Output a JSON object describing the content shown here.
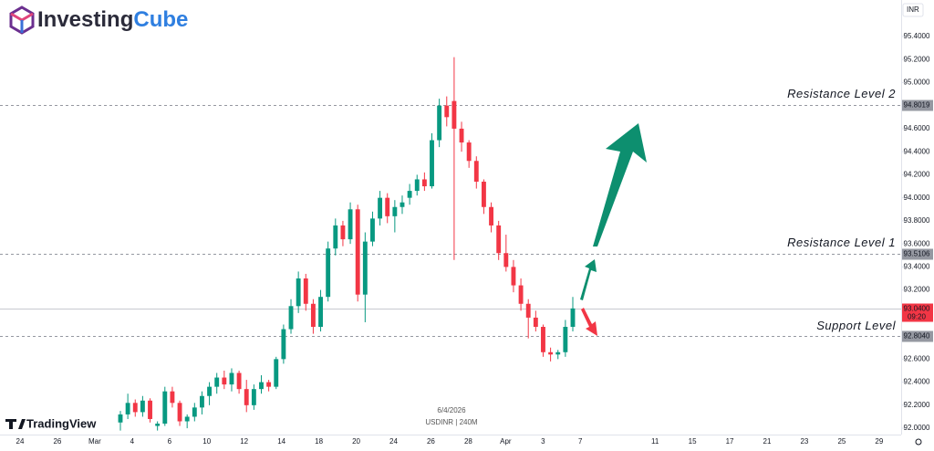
{
  "chart_data": {
    "type": "candlestick",
    "logo": {
      "part1": "Investing",
      "part2": "Cube"
    },
    "watermark": "TradingView",
    "currency": "INR",
    "legend_date": "6/4/2026",
    "legend_symbol": "USDINR | 240M",
    "up_color": "#089981",
    "down_color": "#f23645",
    "ylim": [
      91.9,
      95.7
    ],
    "yticks": [
      {
        "value": 95.4,
        "label": "95.4000"
      },
      {
        "value": 95.2,
        "label": "95.2000"
      },
      {
        "value": 95.0,
        "label": "95.0000"
      },
      {
        "value": 94.8,
        "label": "94.8000"
      },
      {
        "value": 94.6,
        "label": "94.6000"
      },
      {
        "value": 94.4,
        "label": "94.4000"
      },
      {
        "value": 94.2,
        "label": "94.2000"
      },
      {
        "value": 94.0,
        "label": "94.0000"
      },
      {
        "value": 93.8,
        "label": "93.8000"
      },
      {
        "value": 93.6,
        "label": "93.6000"
      },
      {
        "value": 93.4,
        "label": "93.4000"
      },
      {
        "value": 93.2,
        "label": "93.2000"
      },
      {
        "value": 93.0,
        "label": "93.0000"
      },
      {
        "value": 92.8,
        "label": "92.8000"
      },
      {
        "value": 92.6,
        "label": "92.6000"
      },
      {
        "value": 92.4,
        "label": "92.4000"
      },
      {
        "value": 92.2,
        "label": "92.2000"
      },
      {
        "value": 92.0,
        "label": "92.0000"
      }
    ],
    "x_labels": [
      "24",
      "26",
      "Mar",
      "4",
      "6",
      "10",
      "12",
      "14",
      "18",
      "20",
      "24",
      "26",
      "28",
      "Apr",
      "3",
      "7",
      null,
      "11",
      "15",
      "17",
      "21",
      "23",
      "25",
      "29"
    ],
    "candles": {
      "open": [
        92.05,
        92.12,
        92.22,
        92.14,
        92.24,
        92.02,
        92.04,
        92.32,
        92.22,
        92.06,
        92.1,
        92.18,
        92.28,
        92.36,
        92.44,
        92.38,
        92.48,
        92.34,
        92.2,
        92.34,
        92.4,
        92.36,
        92.6,
        92.86,
        93.06,
        93.3,
        93.08,
        92.88,
        93.14,
        93.56,
        93.76,
        93.64,
        93.9,
        93.16,
        93.62,
        93.82,
        94.0,
        93.84,
        93.92,
        94.0,
        94.06,
        94.16,
        94.1,
        94.5,
        94.8,
        94.84,
        94.6,
        94.48,
        94.32,
        94.14,
        93.92,
        93.76,
        93.52,
        93.4,
        93.24,
        93.08,
        92.96,
        92.88,
        92.66,
        92.64,
        92.66,
        92.88
      ],
      "high": [
        92.15,
        92.3,
        92.25,
        92.28,
        92.26,
        92.06,
        92.36,
        92.36,
        92.24,
        92.12,
        92.22,
        92.32,
        92.4,
        92.48,
        92.5,
        92.52,
        92.5,
        92.42,
        92.38,
        92.46,
        92.42,
        92.62,
        92.9,
        93.12,
        93.36,
        93.34,
        93.12,
        93.2,
        93.62,
        93.82,
        93.8,
        93.96,
        93.94,
        93.7,
        93.88,
        94.06,
        94.04,
        93.98,
        94.02,
        94.12,
        94.2,
        94.22,
        94.56,
        94.86,
        94.88,
        95.22,
        94.66,
        94.5,
        94.36,
        94.16,
        93.96,
        93.8,
        93.68,
        93.46,
        93.3,
        93.12,
        93.02,
        92.9,
        92.7,
        92.68,
        92.94,
        93.14
      ],
      "low": [
        91.98,
        92.08,
        92.1,
        92.1,
        92.05,
        91.98,
        92.02,
        92.18,
        92.02,
        92.0,
        92.06,
        92.12,
        92.2,
        92.3,
        92.34,
        92.32,
        92.3,
        92.14,
        92.16,
        92.3,
        92.32,
        92.34,
        92.56,
        92.82,
        93.0,
        93.02,
        92.82,
        92.84,
        93.1,
        93.5,
        93.58,
        93.6,
        93.1,
        92.92,
        93.58,
        93.76,
        93.78,
        93.7,
        93.86,
        93.94,
        94.02,
        94.06,
        94.08,
        94.44,
        94.62,
        93.46,
        94.4,
        94.26,
        94.08,
        93.86,
        93.7,
        93.46,
        93.36,
        93.18,
        93.02,
        92.78,
        92.84,
        92.62,
        92.58,
        92.6,
        92.62,
        92.84
      ],
      "close": [
        92.12,
        92.22,
        92.14,
        92.24,
        92.08,
        92.04,
        92.32,
        92.22,
        92.06,
        92.1,
        92.18,
        92.28,
        92.36,
        92.44,
        92.38,
        92.48,
        92.34,
        92.2,
        92.34,
        92.4,
        92.36,
        92.6,
        92.86,
        93.06,
        93.3,
        93.08,
        92.88,
        93.14,
        93.56,
        93.76,
        93.64,
        93.9,
        93.16,
        93.62,
        93.82,
        94.0,
        93.84,
        93.92,
        93.96,
        94.06,
        94.16,
        94.1,
        94.5,
        94.8,
        94.7,
        94.6,
        94.48,
        94.32,
        94.14,
        93.92,
        93.76,
        93.52,
        93.4,
        93.24,
        93.08,
        92.96,
        92.88,
        92.66,
        92.64,
        92.66,
        92.88,
        93.04
      ]
    },
    "levels": [
      {
        "name": "Resistance Level 2",
        "value": 94.8019,
        "label": "94.8019"
      },
      {
        "name": "Resistance Level 1",
        "value": 93.5106,
        "label": "93.5106"
      },
      {
        "name": "Support Level",
        "value": 92.804,
        "label": "92.8040"
      }
    ],
    "last_price": {
      "value": 93.04,
      "label": "93.0400",
      "countdown": "09:20"
    }
  }
}
